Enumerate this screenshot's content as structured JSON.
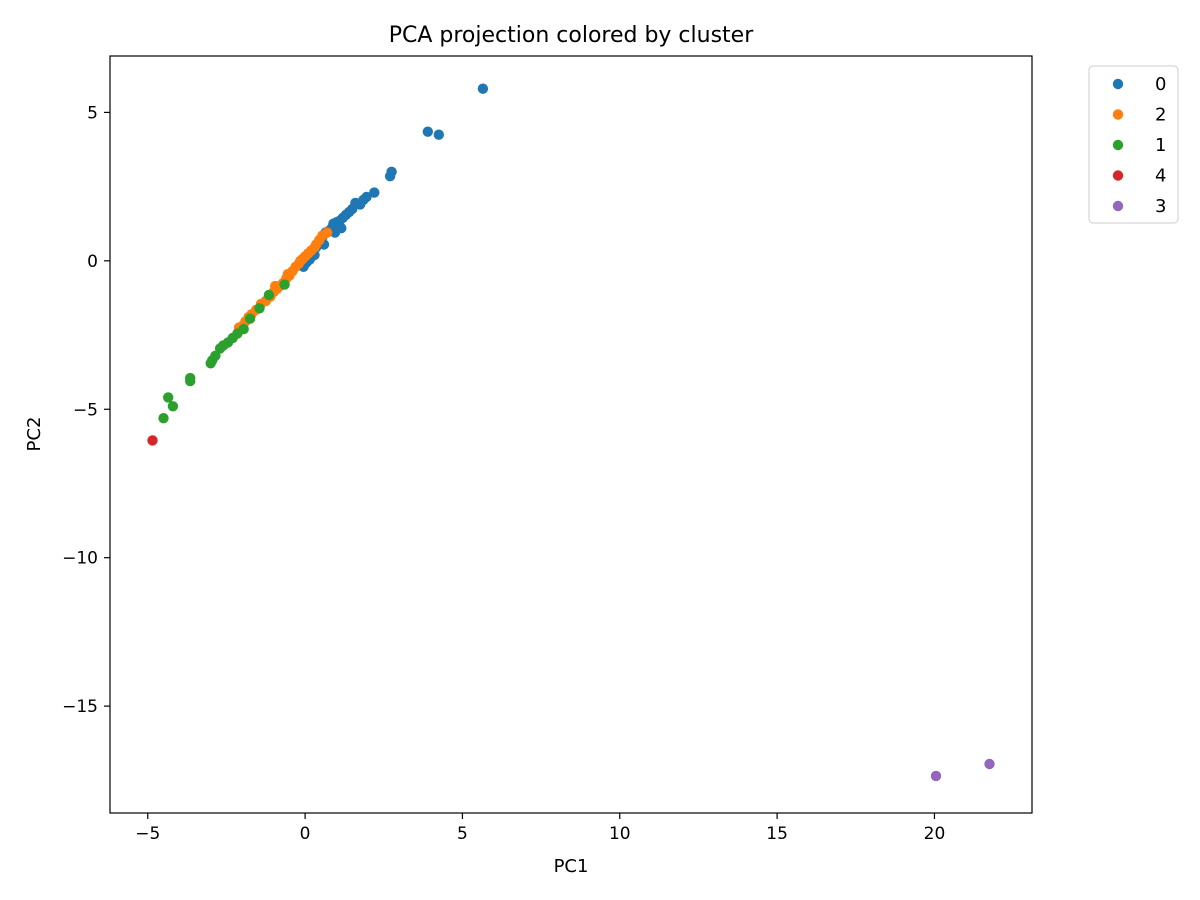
{
  "chart_data": {
    "type": "scatter",
    "title": "PCA projection colored by cluster",
    "xlabel": "PC1",
    "ylabel": "PC2",
    "xlim": [
      -6.2,
      23.1
    ],
    "ylim": [
      -18.6,
      6.9
    ],
    "xticks": [
      -5,
      0,
      5,
      10,
      15,
      20
    ],
    "yticks": [
      5,
      0,
      -5,
      -10,
      -15
    ],
    "xtick_labels": [
      "−5",
      "0",
      "5",
      "10",
      "15",
      "20"
    ],
    "ytick_labels": [
      "5",
      "0",
      "−5",
      "−10",
      "−15"
    ],
    "grid": false,
    "legend_position": "outside top-right",
    "series": [
      {
        "name": "0",
        "color": "#1f77b4",
        "points": [
          [
            5.65,
            5.8
          ],
          [
            3.9,
            4.35
          ],
          [
            4.25,
            4.25
          ],
          [
            2.75,
            3.0
          ],
          [
            2.7,
            2.85
          ],
          [
            2.2,
            2.3
          ],
          [
            1.95,
            2.15
          ],
          [
            1.85,
            2.05
          ],
          [
            1.75,
            1.9
          ],
          [
            1.6,
            1.95
          ],
          [
            1.5,
            1.75
          ],
          [
            1.4,
            1.65
          ],
          [
            1.3,
            1.55
          ],
          [
            1.2,
            1.45
          ],
          [
            1.1,
            1.35
          ],
          [
            1.0,
            1.3
          ],
          [
            0.9,
            1.25
          ],
          [
            0.85,
            1.1
          ],
          [
            0.75,
            1.0
          ],
          [
            0.65,
            0.95
          ],
          [
            0.55,
            0.8
          ],
          [
            0.45,
            0.6
          ],
          [
            0.35,
            0.45
          ],
          [
            0.25,
            0.3
          ],
          [
            0.2,
            0.15
          ],
          [
            0.15,
            0.05
          ],
          [
            0.05,
            -0.05
          ],
          [
            0.0,
            -0.1
          ],
          [
            -0.05,
            -0.2
          ],
          [
            1.15,
            1.1
          ],
          [
            0.95,
            0.95
          ],
          [
            0.6,
            0.55
          ],
          [
            0.3,
            0.2
          ]
        ]
      },
      {
        "name": "2",
        "color": "#ff7f0e",
        "points": [
          [
            0.7,
            0.95
          ],
          [
            0.55,
            0.85
          ],
          [
            0.45,
            0.7
          ],
          [
            0.35,
            0.55
          ],
          [
            0.3,
            0.45
          ],
          [
            0.2,
            0.35
          ],
          [
            0.1,
            0.25
          ],
          [
            0.0,
            0.15
          ],
          [
            -0.1,
            0.05
          ],
          [
            -0.2,
            -0.1
          ],
          [
            -0.3,
            -0.2
          ],
          [
            -0.4,
            -0.35
          ],
          [
            -0.5,
            -0.5
          ],
          [
            -0.6,
            -0.6
          ],
          [
            -0.7,
            -0.75
          ],
          [
            -0.8,
            -0.85
          ],
          [
            -0.9,
            -0.95
          ],
          [
            -1.0,
            -1.05
          ],
          [
            -1.1,
            -1.2
          ],
          [
            -1.25,
            -1.35
          ],
          [
            -1.4,
            -1.45
          ],
          [
            -1.55,
            -1.65
          ],
          [
            -1.7,
            -1.8
          ],
          [
            -1.8,
            -1.9
          ],
          [
            -1.9,
            -2.05
          ],
          [
            -2.0,
            -2.2
          ],
          [
            -2.1,
            -2.25
          ],
          [
            -0.15,
            0.0
          ],
          [
            -0.55,
            -0.45
          ],
          [
            -0.95,
            -0.85
          ]
        ]
      },
      {
        "name": "1",
        "color": "#2ca02c",
        "points": [
          [
            -0.65,
            -0.8
          ],
          [
            -1.15,
            -1.15
          ],
          [
            -1.45,
            -1.6
          ],
          [
            -1.75,
            -1.95
          ],
          [
            -1.95,
            -2.3
          ],
          [
            -2.15,
            -2.45
          ],
          [
            -2.3,
            -2.6
          ],
          [
            -2.45,
            -2.75
          ],
          [
            -2.6,
            -2.85
          ],
          [
            -2.7,
            -2.95
          ],
          [
            -2.85,
            -3.2
          ],
          [
            -2.95,
            -3.35
          ],
          [
            -3.0,
            -3.45
          ],
          [
            -3.65,
            -3.95
          ],
          [
            -3.65,
            -4.05
          ],
          [
            -4.35,
            -4.6
          ],
          [
            -4.2,
            -4.9
          ],
          [
            -4.5,
            -5.3
          ]
        ]
      },
      {
        "name": "4",
        "color": "#d62728",
        "points": [
          [
            -4.85,
            -6.05
          ]
        ]
      },
      {
        "name": "3",
        "color": "#9467bd",
        "points": [
          [
            20.05,
            -17.35
          ],
          [
            21.75,
            -16.95
          ]
        ]
      }
    ]
  }
}
